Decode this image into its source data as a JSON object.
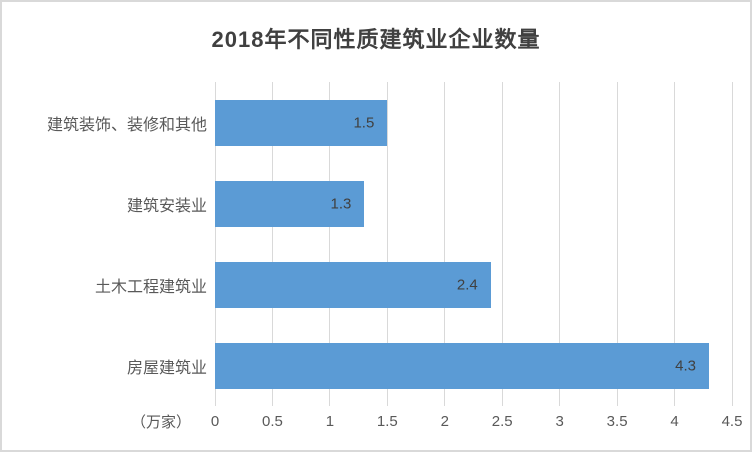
{
  "title": "2018年不同性质建筑业企业数量",
  "axis_unit_label": "（万家）",
  "colors": {
    "bar": "#5b9bd5",
    "gridline": "#d9d9d9",
    "border": "#d9d9d9",
    "title_text": "#404040",
    "data_label_text": "#404040",
    "axis_text": "#595959",
    "background": "#ffffff"
  },
  "chart_data": {
    "type": "bar",
    "orientation": "horizontal",
    "title": "2018年不同性质建筑业企业数量",
    "categories_top_to_bottom": [
      "建筑装饰、装修和其他",
      "建筑安装业",
      "土木工程建筑业",
      "房屋建筑业"
    ],
    "values": [
      1.5,
      1.3,
      2.4,
      4.3
    ],
    "value_labels": [
      "1.5",
      "1.3",
      "2.4",
      "4.3"
    ],
    "data_labels_position": "inside-end",
    "xlabel": "（万家）",
    "ylabel": "",
    "xlim": [
      0,
      4.5
    ],
    "xticks": [
      0,
      0.5,
      1,
      1.5,
      2,
      2.5,
      3,
      3.5,
      4,
      4.5
    ],
    "xtick_labels": [
      "0",
      "0.5",
      "1",
      "1.5",
      "2",
      "2.5",
      "3",
      "3.5",
      "4",
      "4.5"
    ],
    "grid": "vertical-only",
    "legend": "none",
    "series_name": "企业数量"
  }
}
